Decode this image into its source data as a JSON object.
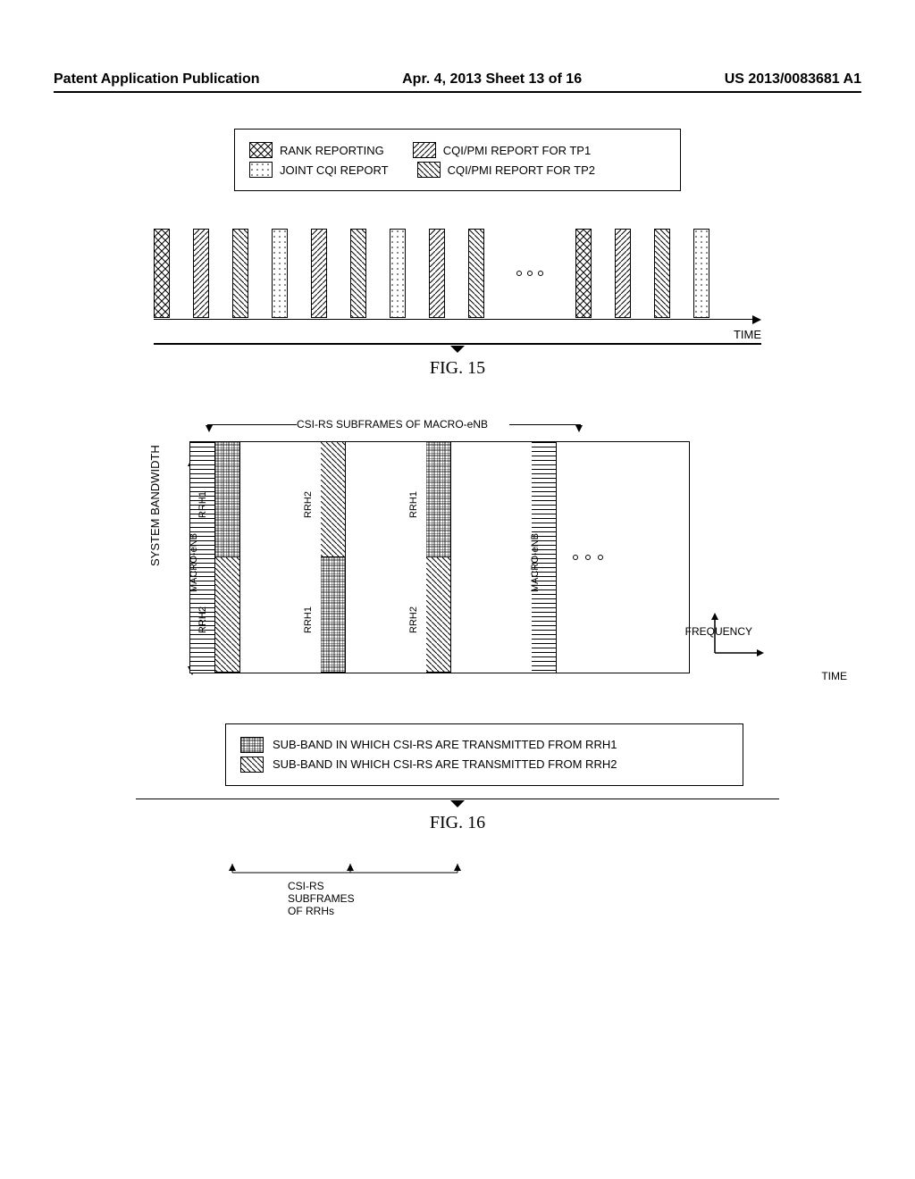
{
  "header": {
    "left": "Patent Application Publication",
    "center": "Apr. 4, 2013  Sheet 13 of 16",
    "right": "US 2013/0083681 A1"
  },
  "fig15": {
    "caption": "FIG. 15",
    "time_label": "TIME",
    "legend": {
      "rank": "RANK REPORTING",
      "tp1": "CQI/PMI REPORT FOR TP1",
      "joint": "JOINT CQI REPORT",
      "tp2": "CQI/PMI REPORT FOR TP2"
    },
    "bars": [
      "cross",
      "diag",
      "diag2",
      "dots",
      "diag",
      "diag2",
      "dots",
      "diag",
      "diag2",
      "ellipsis",
      "cross",
      "diag",
      "diag2",
      "dots"
    ],
    "colors": {
      "border": "#000000",
      "bg": "#ffffff"
    }
  },
  "fig16": {
    "caption": "FIG. 16",
    "y_label": "SYSTEM BANDWIDTH",
    "top_label": "CSI-RS SUBFRAMES OF MACRO-eNB",
    "bot_label": "CSI-RS SUBFRAMES OF RRHs",
    "freq_label": "FREQUENCY",
    "time_label": "TIME",
    "legend": {
      "rrh1": "SUB-BAND IN WHICH CSI-RS ARE TRANSMITTED FROM RRH1",
      "rrh2": "SUB-BAND IN WHICH CSI-RS ARE TRANSMITTED FROM RRH2"
    },
    "macro_label": "MACRO-eNB",
    "rrh1_label": "RRH1",
    "rrh2_label": "RRH2",
    "columns": [
      {
        "type": "macro",
        "label": "MACRO-eNB"
      },
      {
        "type": "rrh",
        "top": "rrh1",
        "bot": "rrh2",
        "top_label": "RRH1",
        "bot_label": "RRH2"
      },
      {
        "type": "gap"
      },
      {
        "type": "rrh",
        "top": "rrh2",
        "bot": "rrh1",
        "top_label": "RRH2",
        "bot_label": "RRH1"
      },
      {
        "type": "gap"
      },
      {
        "type": "rrh",
        "top": "rrh1",
        "bot": "rrh2",
        "top_label": "RRH1",
        "bot_label": "RRH2"
      },
      {
        "type": "gap"
      },
      {
        "type": "macro",
        "label": "MACRO-eNB"
      },
      {
        "type": "dots"
      }
    ],
    "colors": {
      "border": "#000000",
      "bg": "#ffffff"
    }
  }
}
